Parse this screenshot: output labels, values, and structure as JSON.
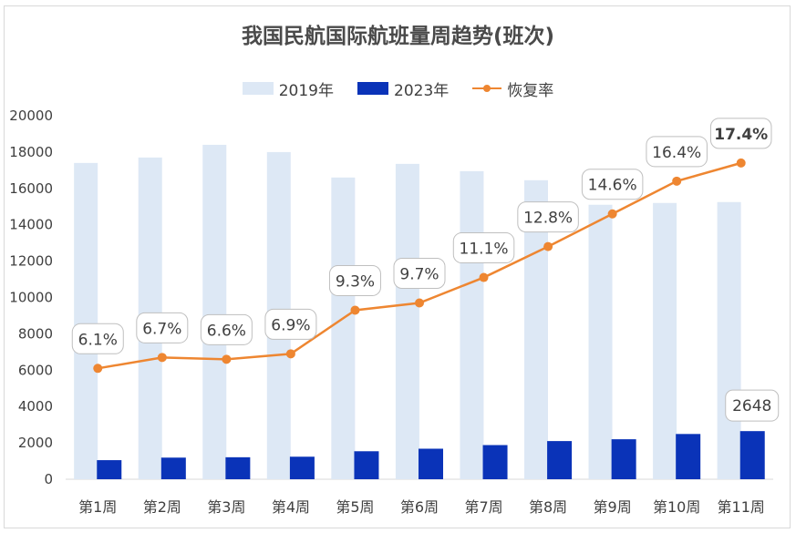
{
  "chart_data": {
    "type": "bar",
    "title": "我国民航国际航班量周趋势(班次)",
    "categories": [
      "第1周",
      "第2周",
      "第3周",
      "第4周",
      "第5周",
      "第6周",
      "第7周",
      "第8周",
      "第9周",
      "第10周",
      "第11周"
    ],
    "series": [
      {
        "name": "2019年",
        "type": "bar",
        "color": "#dde8f5",
        "values": [
          17400,
          17700,
          18400,
          18000,
          16600,
          17350,
          16950,
          16450,
          15100,
          15200,
          15250
        ]
      },
      {
        "name": "2023年",
        "type": "bar",
        "color": "#0a33b8",
        "values": [
          1050,
          1190,
          1210,
          1240,
          1540,
          1680,
          1880,
          2100,
          2200,
          2490,
          2648
        ]
      },
      {
        "name": "恢复率",
        "type": "line",
        "color": "#ee8631",
        "values": [
          6.1,
          6.7,
          6.6,
          6.9,
          9.3,
          9.7,
          11.1,
          12.8,
          14.6,
          16.4,
          17.4
        ],
        "labels": [
          "6.1%",
          "6.7%",
          "6.6%",
          "6.9%",
          "9.3%",
          "9.7%",
          "11.1%",
          "12.8%",
          "14.6%",
          "16.4%",
          "17.4%"
        ]
      }
    ],
    "bar_annotation": {
      "category": "第11周",
      "series": "2023年",
      "label": "2648"
    },
    "y_axis": {
      "min": 0,
      "max": 20000,
      "step": 2000,
      "ticks": [
        "0",
        "2000",
        "4000",
        "6000",
        "8000",
        "10000",
        "12000",
        "14000",
        "16000",
        "18000",
        "20000"
      ]
    },
    "line_axis": {
      "min": 0,
      "max": 20,
      "unit": "%",
      "visible": false
    },
    "grid": false,
    "legend": "top-center"
  }
}
